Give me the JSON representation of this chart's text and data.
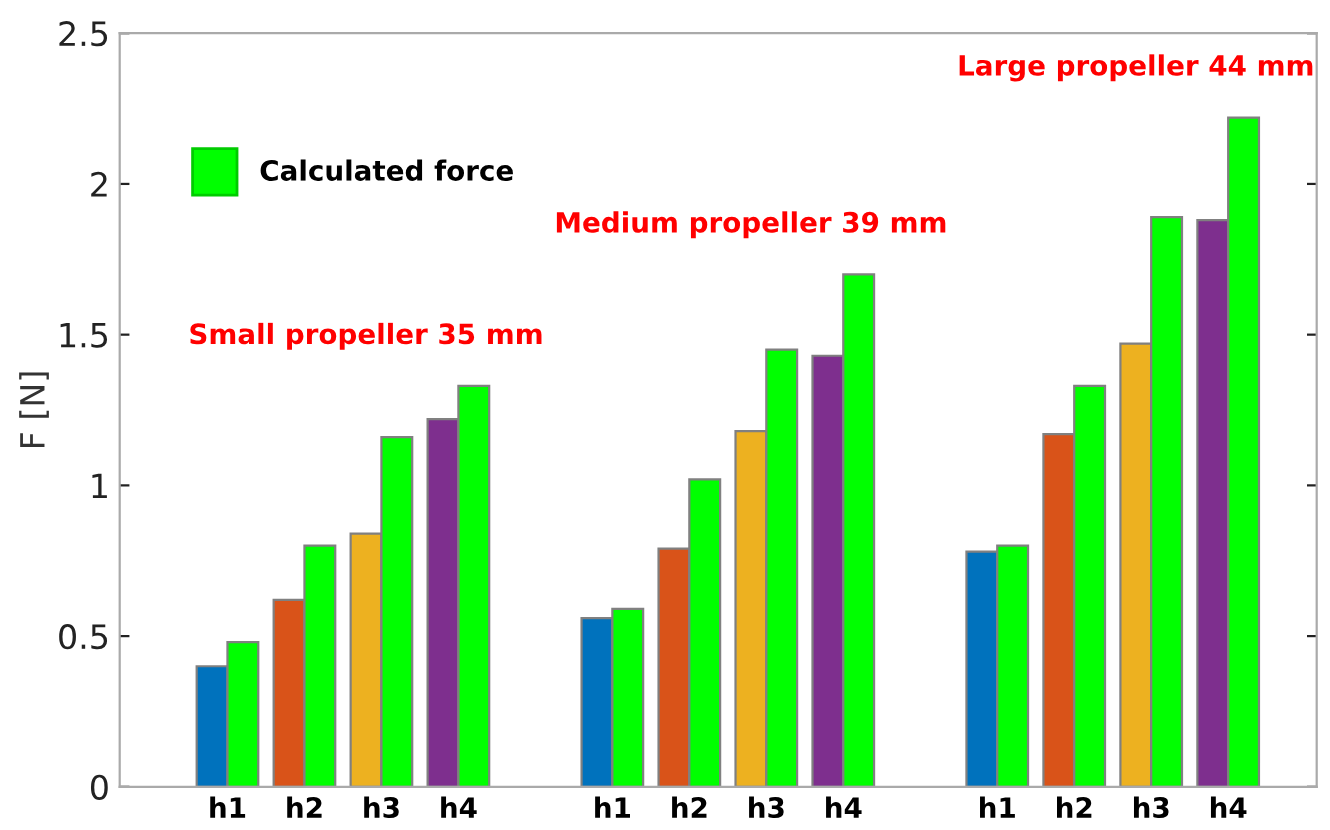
{
  "chart_data": {
    "type": "bar",
    "ylabel": "F [N]",
    "categories": [
      "h1",
      "h2",
      "h3",
      "h4",
      null,
      "h1",
      "h2",
      "h3",
      "h4",
      null,
      "h1",
      "h2",
      "h3",
      "h4"
    ],
    "series": [
      {
        "colors": [
          "#0072bd",
          "#d95319",
          "#edb120",
          "#7e2f8e",
          null,
          "#0072bd",
          "#d95319",
          "#edb120",
          "#7e2f8e",
          null,
          "#0072bd",
          "#d95319",
          "#edb120",
          "#7e2f8e"
        ],
        "values": [
          0.4,
          0.62,
          0.84,
          1.22,
          null,
          0.56,
          0.79,
          1.18,
          1.43,
          null,
          0.78,
          1.17,
          1.47,
          1.88
        ]
      },
      {
        "name": "Calculated force",
        "color": "#00ff00",
        "values": [
          0.48,
          0.8,
          1.16,
          1.33,
          null,
          0.59,
          1.02,
          1.45,
          1.7,
          null,
          0.8,
          1.33,
          1.89,
          2.22
        ]
      }
    ],
    "ylim": [
      0,
      2.5
    ],
    "yticks": [
      0,
      0.5,
      1,
      1.5,
      2,
      2.5
    ],
    "annotations": [
      "Small propeller 35 mm",
      "Medium propeller 39 mm",
      "Large propeller 44 mm"
    ],
    "legend": "top left",
    "grid": false
  }
}
